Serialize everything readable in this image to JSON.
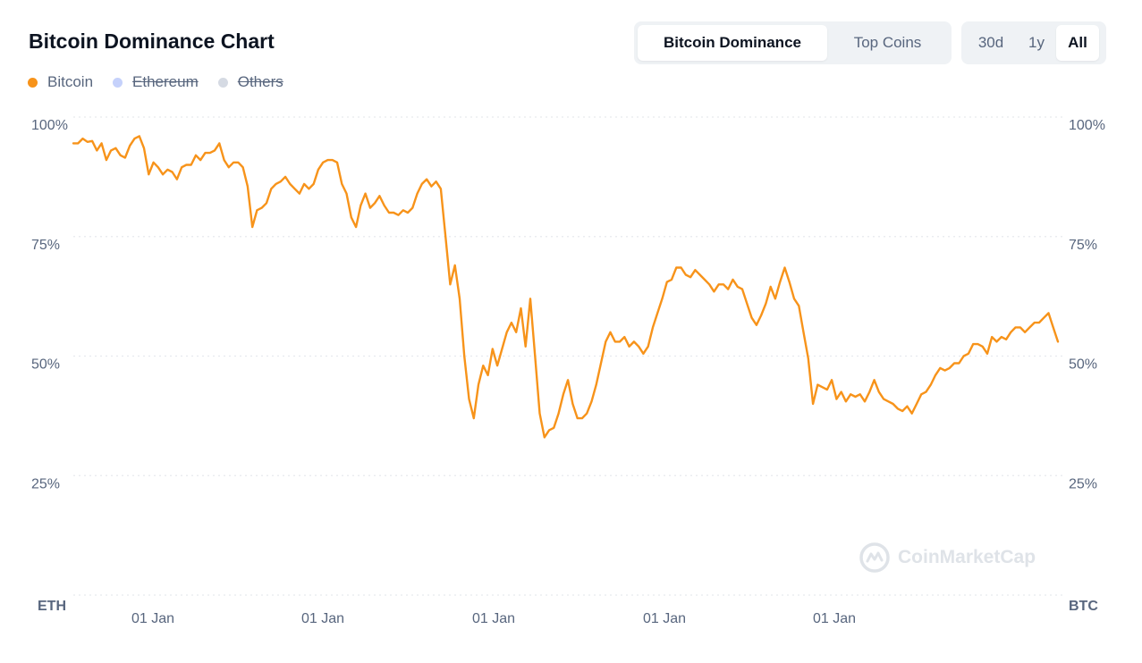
{
  "header": {
    "title": "Bitcoin Dominance Chart"
  },
  "legend": [
    {
      "label": "Bitcoin",
      "color": "#f7931a",
      "active": true
    },
    {
      "label": "Ethereum",
      "color": "#c5d1fb",
      "active": false
    },
    {
      "label": "Others",
      "color": "#d5dae3",
      "active": false
    }
  ],
  "view_toggle": [
    {
      "label": "Bitcoin Dominance",
      "active": true
    },
    {
      "label": "Top Coins",
      "active": false
    }
  ],
  "range_toggle": [
    {
      "label": "30d",
      "active": false
    },
    {
      "label": "1y",
      "active": false
    },
    {
      "label": "All",
      "active": true
    }
  ],
  "watermark": "CoinMarketCap",
  "chart_data": {
    "type": "line",
    "yticks_left": [
      "100%",
      "75%",
      "50%",
      "25%"
    ],
    "yticks_right": [
      "100%",
      "75%",
      "50%",
      "25%"
    ],
    "ytick_values": [
      100,
      75,
      50,
      25
    ],
    "ylim": [
      0,
      100
    ],
    "xtick_labels": [
      "01 Jan",
      "01 Jan",
      "01 Jan",
      "01 Jan",
      "01 Jan"
    ],
    "x_end_left": "ETH",
    "x_end_right": "BTC",
    "grid": true,
    "series": [
      {
        "name": "Bitcoin",
        "color": "#f7931a",
        "values": [
          94.5,
          94.5,
          95.5,
          94.8,
          95.0,
          93.0,
          94.5,
          91.0,
          93.0,
          93.5,
          92.0,
          91.5,
          94.0,
          95.5,
          96.0,
          93.5,
          88.0,
          90.5,
          89.5,
          88.0,
          89.0,
          88.5,
          87.0,
          89.5,
          90.0,
          90.0,
          92.0,
          91.0,
          92.5,
          92.5,
          93.0,
          94.5,
          91.0,
          89.5,
          90.5,
          90.5,
          89.5,
          85.5,
          77.0,
          80.5,
          81.0,
          82.0,
          85.0,
          86.0,
          86.5,
          87.5,
          86.0,
          85.0,
          84.0,
          86.0,
          85.0,
          86.0,
          89.0,
          90.5,
          91.0,
          91.0,
          90.5,
          86.0,
          84.0,
          79.0,
          77.0,
          81.5,
          84.0,
          81.0,
          82.0,
          83.5,
          81.5,
          80.0,
          80.0,
          79.5,
          80.5,
          80.0,
          81.0,
          84.0,
          86.0,
          87.0,
          85.5,
          86.5,
          85.0,
          75.0,
          65.0,
          69.0,
          62.0,
          50.0,
          41.0,
          37.0,
          44.0,
          48.0,
          46.0,
          51.5,
          48.0,
          51.5,
          55.0,
          57.0,
          55.0,
          60.0,
          52.0,
          62.0,
          50.0,
          38.0,
          33.0,
          34.5,
          35.0,
          38.0,
          42.0,
          45.0,
          40.0,
          37.0,
          37.0,
          38.0,
          40.5,
          44.0,
          48.5,
          53.0,
          55.0,
          53.0,
          53.0,
          54.0,
          52.0,
          53.0,
          52.0,
          50.5,
          52.0,
          56.0,
          59.0,
          62.0,
          65.5,
          66.0,
          68.5,
          68.5,
          67.0,
          66.5,
          68.0,
          67.0,
          66.0,
          65.0,
          63.5,
          65.0,
          65.0,
          64.0,
          66.0,
          64.5,
          64.0,
          61.0,
          58.0,
          56.5,
          58.5,
          61.0,
          64.5,
          62.0,
          65.5,
          68.5,
          65.5,
          62.0,
          60.5,
          55.0,
          49.5,
          40.0,
          44.0,
          43.5,
          43.0,
          45.0,
          41.0,
          42.5,
          40.5,
          42.0,
          41.5,
          42.0,
          40.5,
          42.5,
          45.0,
          42.5,
          41.0,
          40.5,
          40.0,
          39.0,
          38.5,
          39.5,
          38.0,
          40.0,
          42.0,
          42.5,
          44.0,
          46.0,
          47.5,
          47.0,
          47.5,
          48.5,
          48.5,
          50.0,
          50.5,
          52.5,
          52.5,
          52.0,
          50.5,
          54.0,
          53.0,
          54.0,
          53.5,
          55.0,
          56.0,
          56.0,
          55.0,
          56.0,
          57.0,
          57.0,
          58.0,
          59.0,
          56.0,
          53.0
        ]
      }
    ]
  }
}
